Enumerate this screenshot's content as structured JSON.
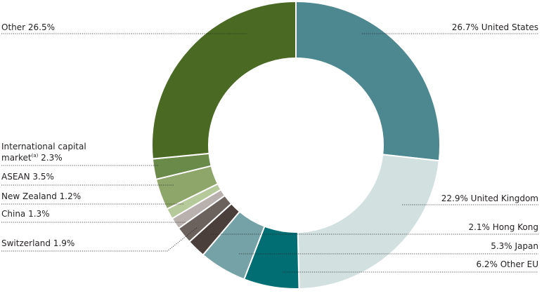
{
  "chart_data": {
    "type": "pie",
    "donut": true,
    "slices": [
      {
        "label": "United States",
        "value": 26.7,
        "color": "#4d8890",
        "text": "26.7% United States"
      },
      {
        "label": "United Kingdom",
        "value": 22.9,
        "color": "#d2e0e0",
        "text": "22.9% United Kingdom"
      },
      {
        "label": "Other EU",
        "value": 6.2,
        "color": "#006e72",
        "text": "6.2% Other EU"
      },
      {
        "label": "Japan",
        "value": 5.3,
        "color": "#74a2a6",
        "text": "5.3% Japan"
      },
      {
        "label": "Hong Kong",
        "value": 2.1,
        "color": "#4b3f3c",
        "text": "2.1% Hong Kong"
      },
      {
        "label": "Switzerland",
        "value": 1.9,
        "color": "#6b625e",
        "text": "Switzerland 1.9%"
      },
      {
        "label": "China",
        "value": 1.3,
        "color": "#b8b1ad",
        "text": "China 1.3%"
      },
      {
        "label": "New Zealand",
        "value": 1.2,
        "color": "#b6c99b",
        "text": "New Zealand 1.2%"
      },
      {
        "label": "ASEAN",
        "value": 3.5,
        "color": "#8fa66a",
        "text": "ASEAN 3.5%"
      },
      {
        "label": "International capital market",
        "value": 2.3,
        "color": "#6a8a4a",
        "text_line1": "International capital",
        "text_line2_prefix": "market",
        "text_superscript": "(a)",
        "text_line2_suffix": " 2.3%"
      },
      {
        "label": "Other",
        "value": 26.5,
        "color": "#4a6a24",
        "text": "Other 26.5%"
      }
    ]
  }
}
